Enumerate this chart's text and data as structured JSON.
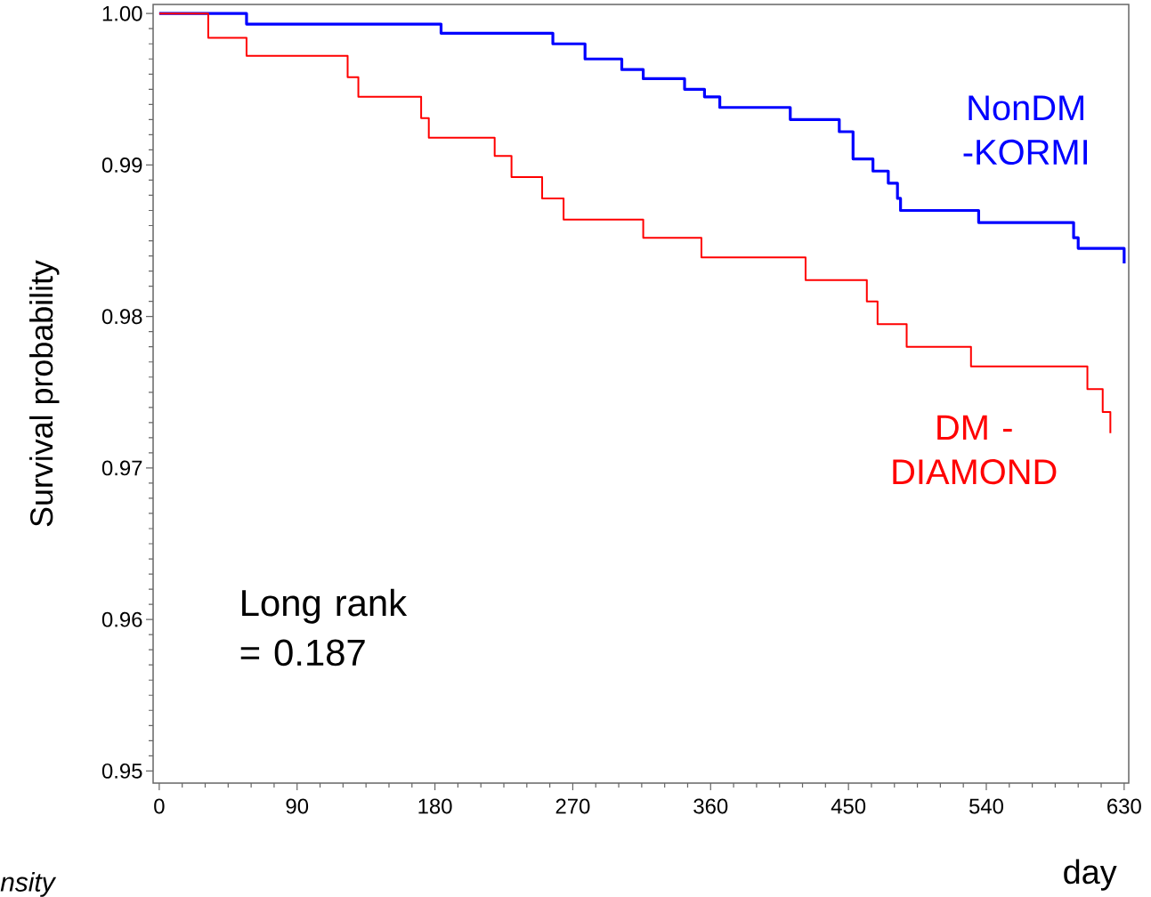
{
  "chart_data": {
    "type": "step",
    "xlabel": "day",
    "ylabel": "Survival probability",
    "xlim": [
      -4,
      633
    ],
    "ylim": [
      0.9492,
      1.0006
    ],
    "xticks": [
      0,
      90,
      180,
      270,
      360,
      450,
      540,
      630
    ],
    "yticks": [
      0.95,
      0.96,
      0.97,
      0.98,
      0.99,
      {
        "value": 1.0,
        "label": "1.00"
      }
    ],
    "series": [
      {
        "name": "NonDM -KORMI",
        "color": "#0000ff",
        "x": [
          0,
          57,
          184,
          257,
          278,
          302,
          316,
          343,
          356,
          366,
          412,
          444,
          453,
          466,
          476,
          482,
          484,
          535,
          597,
          600,
          630
        ],
        "values": [
          1,
          0.9993,
          0.9987,
          0.998,
          0.997,
          0.9963,
          0.9957,
          0.995,
          0.9945,
          0.9938,
          0.993,
          0.9922,
          0.9904,
          0.9896,
          0.9888,
          0.9878,
          0.987,
          0.9862,
          0.9852,
          0.9845,
          0.9835
        ]
      },
      {
        "name": "DM -DIAMOND",
        "color": "#ff0000",
        "x": [
          0,
          32,
          57,
          123,
          130,
          171,
          176,
          219,
          230,
          250,
          264,
          316,
          354,
          422,
          462,
          469,
          488,
          530,
          606,
          616,
          621
        ],
        "values": [
          1,
          0.9984,
          0.9972,
          0.9958,
          0.9945,
          0.9931,
          0.9918,
          0.9906,
          0.9892,
          0.9878,
          0.9864,
          0.9852,
          0.9839,
          0.9824,
          0.981,
          0.9795,
          0.978,
          0.9767,
          0.9752,
          0.9737,
          0.9723
        ]
      }
    ],
    "annotations": [
      "Long rank = 0.187",
      "nsity"
    ]
  }
}
